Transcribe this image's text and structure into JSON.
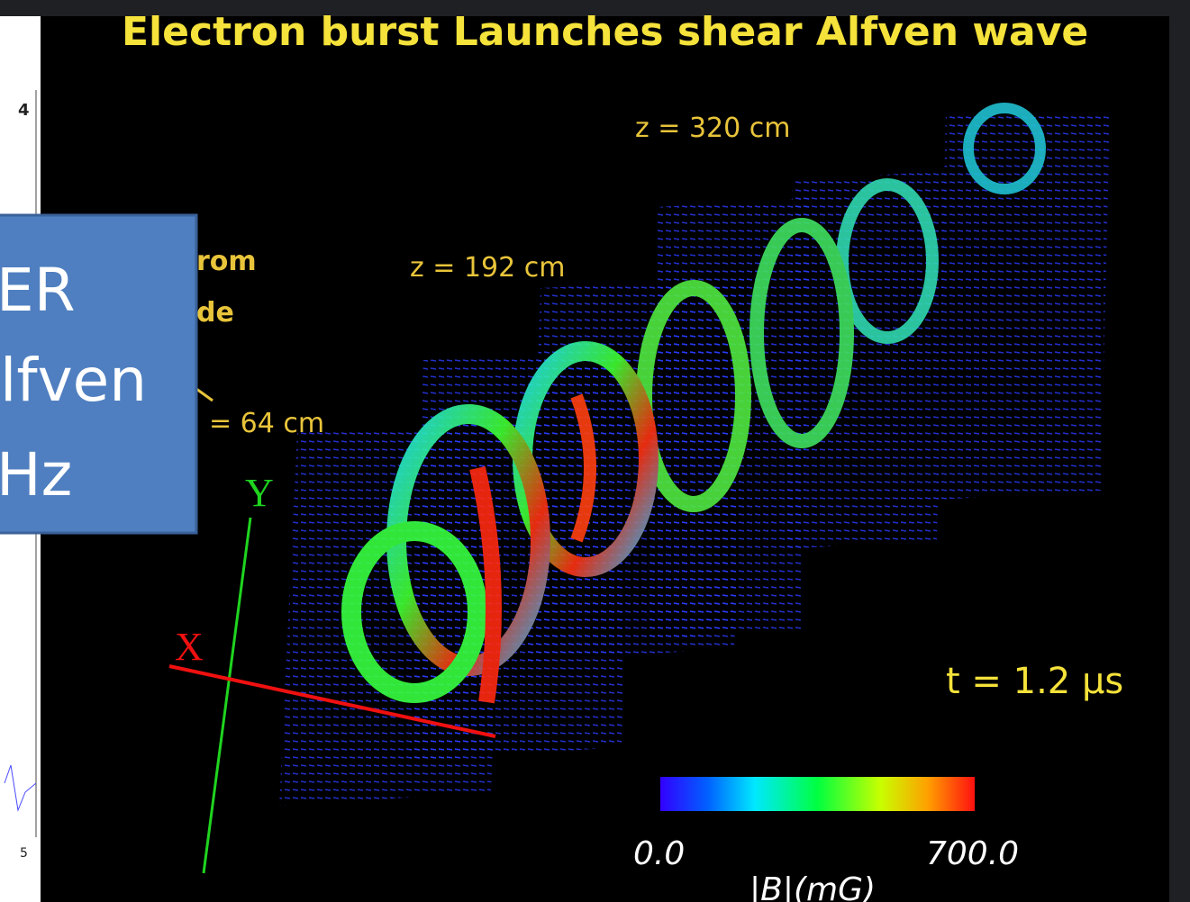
{
  "title": "Electron burst Launches shear Alfven wave",
  "plane_labels": [
    "z = 320 cm",
    "z = 192 cm",
    "= 64 cm"
  ],
  "annotation": [
    "rom",
    "de"
  ],
  "axes": {
    "x": "X",
    "y": "Y"
  },
  "time_label": "t = 1.2 μs",
  "colorbar": {
    "min_label": "0.0",
    "max_label": "700.0",
    "label": "|B|(mG)"
  },
  "overlay_box": {
    "lines": [
      "ER",
      "lfven",
      "Hz"
    ]
  },
  "side_plot": {
    "ticks": [
      "4",
      "5"
    ]
  }
}
